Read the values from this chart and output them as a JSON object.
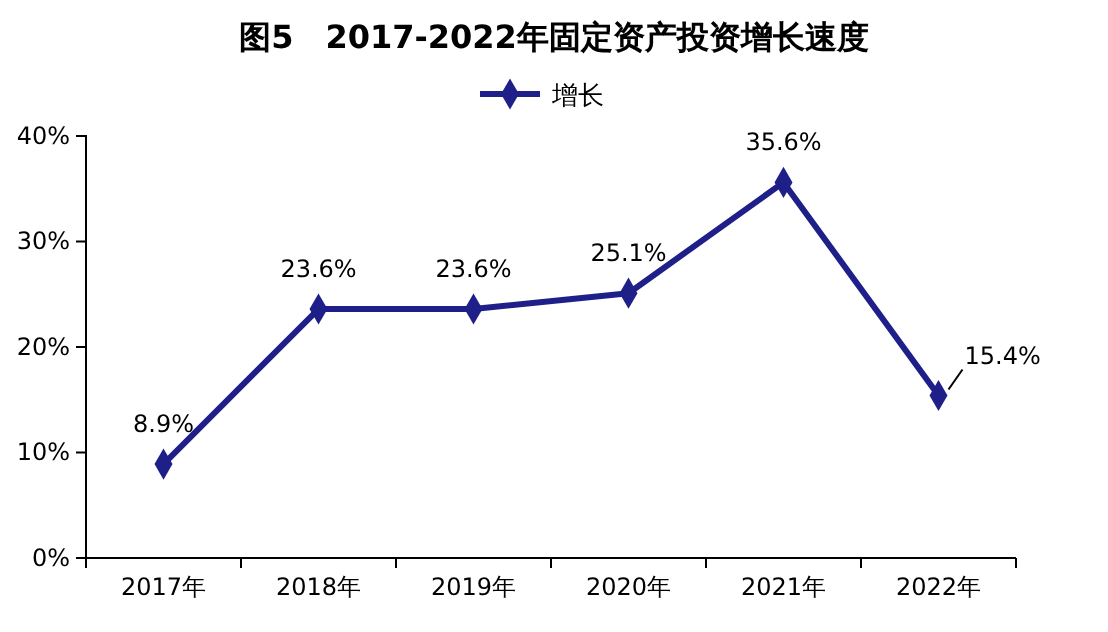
{
  "chart_data": {
    "type": "line",
    "title": "图5　2017-2022年固定资产投资增长速度",
    "categories": [
      "2017年",
      "2018年",
      "2019年",
      "2020年",
      "2021年",
      "2022年"
    ],
    "series": [
      {
        "name": "增长",
        "color": "#1f1f8a",
        "values": [
          8.9,
          23.6,
          23.6,
          25.1,
          35.6,
          15.4
        ],
        "value_labels": [
          "8.9%",
          "23.6%",
          "23.6%",
          "25.1%",
          "35.6%",
          "15.4%"
        ]
      }
    ],
    "ylim": [
      0,
      40
    ],
    "yticks": [
      {
        "value": 0,
        "label": "0%"
      },
      {
        "value": 10,
        "label": "10%"
      },
      {
        "value": 20,
        "label": "20%"
      },
      {
        "value": 30,
        "label": "30%"
      },
      {
        "value": 40,
        "label": "40%"
      }
    ],
    "legend": "top",
    "marker": "diamond",
    "line_style": "solid",
    "grid": false
  }
}
